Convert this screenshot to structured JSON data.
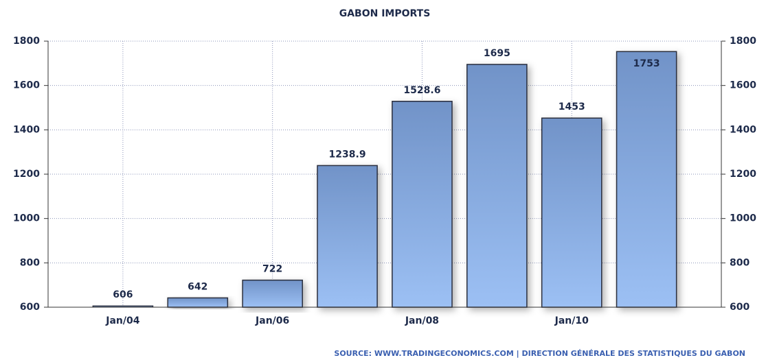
{
  "chart_data": {
    "type": "bar",
    "title": "GABON IMPORTS",
    "categories": [
      "Jan/04",
      null,
      "Jan/06",
      null,
      "Jan/08",
      null,
      "Jan/10",
      null
    ],
    "values": [
      606,
      642,
      722,
      1238.9,
      1528.6,
      1695,
      1453,
      1753
    ],
    "color": "#7f9fd4",
    "ylim": [
      600,
      1800
    ],
    "yticks": [
      600,
      800,
      1000,
      1200,
      1400,
      1600,
      1800
    ],
    "y2lim": [
      600,
      1800
    ],
    "y2ticks": [
      600,
      800,
      1000,
      1200,
      1400,
      1600,
      1800
    ],
    "grid": true,
    "source": "SOURCE: WWW.TRADINGECONOMICS.COM | DIRECTION GÉNÉRALE DES STATISTIQUES DU GABON"
  }
}
